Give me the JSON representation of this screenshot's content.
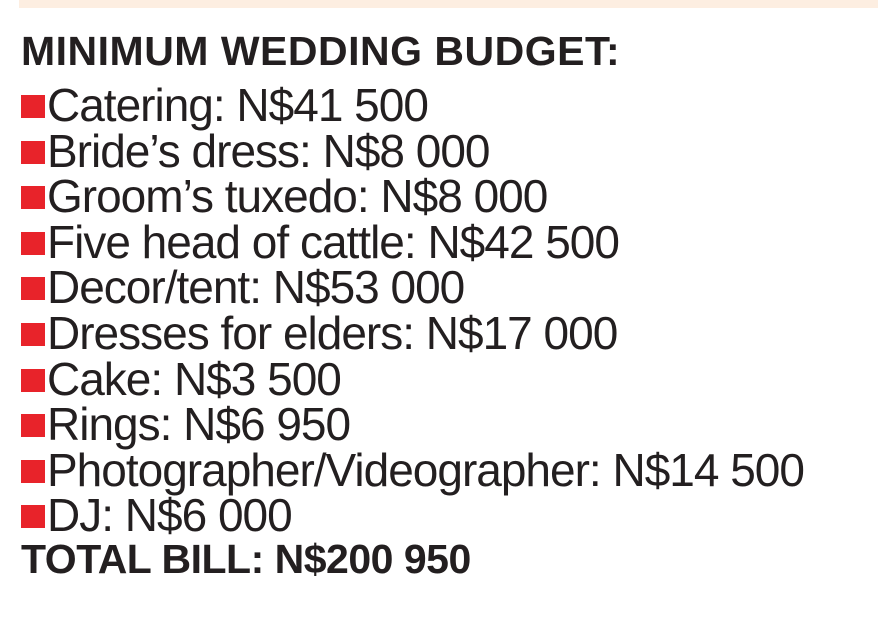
{
  "page": {
    "background_color": "#ffffff",
    "text_color": "#231f20",
    "accent_bar_color": "#fdeee1",
    "bullet_color": "#e8232a"
  },
  "header": {
    "title": "MINIMUM WEDDING BUDGET:"
  },
  "budget": {
    "items": [
      {
        "label": "Catering",
        "amount": "N$41 500",
        "text": "Catering: N$41 500"
      },
      {
        "label": "Bride’s dress",
        "amount": "N$8 000",
        "text": "Bride’s dress: N$8 000"
      },
      {
        "label": "Groom’s tuxedo",
        "amount": "N$8 000",
        "text": "Groom’s tuxedo: N$8 000"
      },
      {
        "label": "Five head of cattle",
        "amount": "N$42 500",
        "text": "Five head of cattle: N$42 500"
      },
      {
        "label": "Decor/tent",
        "amount": "N$53 000",
        "text": "Decor/tent: N$53 000"
      },
      {
        "label": "Dresses for elders",
        "amount": "N$17 000",
        "text": "Dresses for elders: N$17 000"
      },
      {
        "label": "Cake",
        "amount": "N$3 500",
        "text": "Cake: N$3 500"
      },
      {
        "label": "Rings",
        "amount": "N$6 950",
        "text": "Rings: N$6 950"
      },
      {
        "label": "Photographer/Videographer",
        "amount": "N$14 500",
        "text": "Photographer/Videographer: N$14 500"
      },
      {
        "label": "DJ",
        "amount": "N$6 000",
        "text": "DJ: N$6 000"
      }
    ],
    "total": {
      "label": "TOTAL BILL",
      "amount": "N$200 950",
      "text": "TOTAL BILL: N$200 950"
    }
  }
}
